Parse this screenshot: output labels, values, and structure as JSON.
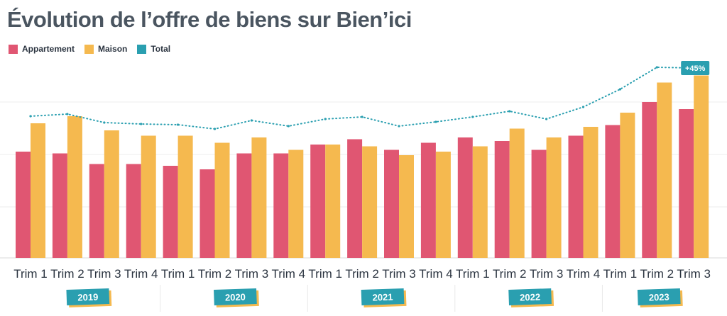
{
  "chart_data": {
    "type": "bar",
    "title": "Évolution de l’offre de biens sur Bien’ici",
    "categories": [
      "Trim 1",
      "Trim 2",
      "Trim 3",
      "Trim 4",
      "Trim 1",
      "Trim 2",
      "Trim 3",
      "Trim 4",
      "Trim 1",
      "Trim 2",
      "Trim 3",
      "Trim 4",
      "Trim 1",
      "Trim 2",
      "Trim 3",
      "Trim 4",
      "Trim 1",
      "Trim 2",
      "Trim 3"
    ],
    "years": [
      {
        "label": "2019",
        "count": 4
      },
      {
        "label": "2020",
        "count": 4
      },
      {
        "label": "2021",
        "count": 4
      },
      {
        "label": "2022",
        "count": 4
      },
      {
        "label": "2023",
        "count": 3
      }
    ],
    "series": [
      {
        "name": "Appartement",
        "type": "bar",
        "color": "#e05672",
        "values": [
          60,
          59,
          53,
          53,
          52,
          50,
          59,
          59,
          64,
          67,
          61,
          65,
          68,
          66,
          61,
          69,
          75,
          88,
          84
        ]
      },
      {
        "name": "Maison",
        "type": "bar",
        "color": "#f5b94f",
        "values": [
          76,
          80,
          72,
          69,
          69,
          65,
          68,
          61,
          64,
          63,
          58,
          60,
          63,
          73,
          68,
          74,
          82,
          99,
          103
        ]
      },
      {
        "name": "Total",
        "type": "line",
        "style": "dotted",
        "color": "#2a9fb0",
        "values": [
          200,
          203,
          191,
          189,
          188,
          182,
          194,
          186,
          196,
          199,
          186,
          192,
          199,
          207,
          196,
          213,
          238,
          269,
          268
        ]
      }
    ],
    "annotation": {
      "text": "+45%",
      "index": 18,
      "color": "#2a9fb0"
    },
    "year_badge_color": "#2a9fb0",
    "year_badge_shadow": "#f5b94f",
    "grid": true,
    "legend": "top-left"
  }
}
